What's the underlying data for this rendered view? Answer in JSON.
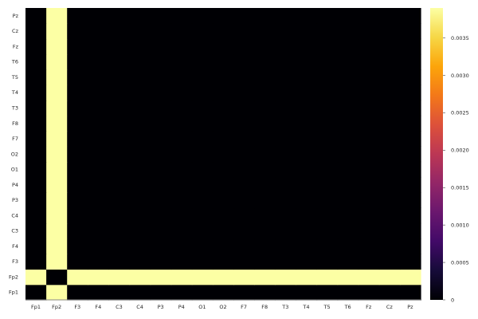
{
  "chart_data": {
    "type": "heatmap",
    "categories_x": [
      "Fp1",
      "Fp2",
      "F3",
      "F4",
      "C3",
      "C4",
      "P3",
      "P4",
      "O1",
      "O2",
      "F7",
      "F8",
      "T3",
      "T4",
      "T5",
      "T6",
      "Fz",
      "Cz",
      "Pz"
    ],
    "categories_y": [
      "Fp1",
      "Fp2",
      "F3",
      "F4",
      "C3",
      "C4",
      "P3",
      "P4",
      "O1",
      "O2",
      "F7",
      "F8",
      "T3",
      "T4",
      "T5",
      "T6",
      "Fz",
      "Cz",
      "Pz"
    ],
    "high_value": 0.0039,
    "high_row": "Fp2",
    "high_col": "Fp2",
    "colorbar": {
      "min": 0,
      "max": 0.0039,
      "ticks": [
        0,
        0.0005,
        0.001,
        0.0015,
        0.002,
        0.0025,
        0.003,
        0.0035
      ],
      "tick_labels": [
        "0",
        "0.0005",
        "0.0010",
        "0.0015",
        "0.0020",
        "0.0025",
        "0.0030",
        "0.0035"
      ],
      "colormap": "inferno"
    },
    "title": "",
    "xlabel": "",
    "ylabel": "",
    "grid": false,
    "legend": "colorbar-right"
  }
}
